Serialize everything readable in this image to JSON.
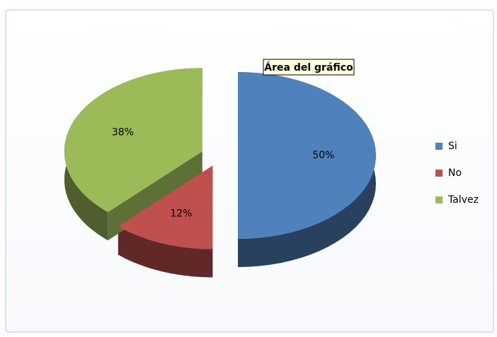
{
  "chart_data": {
    "type": "pie3d",
    "annotation": "Área del gráfico",
    "categories": [
      "Si",
      "No",
      "Talvez"
    ],
    "values": [
      50,
      12,
      38
    ],
    "value_labels": [
      "50%",
      "12%",
      "38%"
    ],
    "colors": [
      "#4f81bd",
      "#c0504d",
      "#9bbb59"
    ],
    "legend": "right"
  }
}
